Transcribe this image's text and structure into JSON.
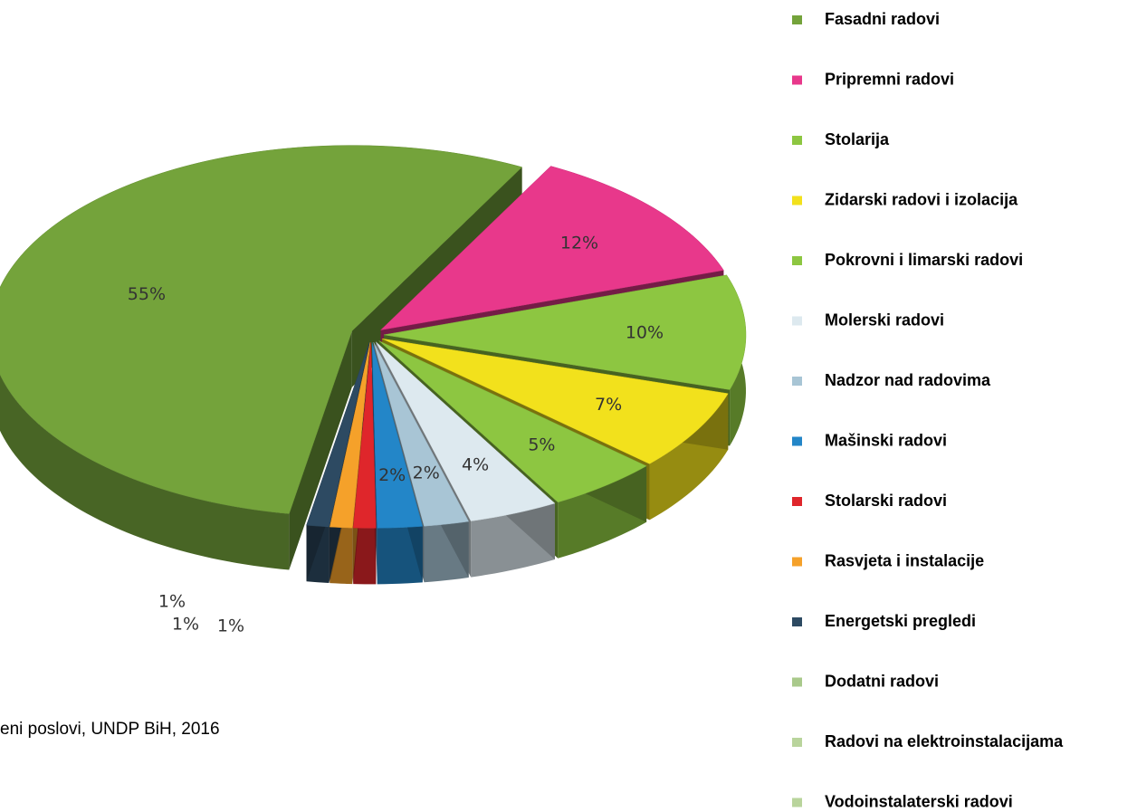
{
  "chart_data": {
    "type": "pie",
    "categories": [
      "Fasadni radovi",
      "Pripremni radovi",
      "Stolarija",
      "Zidarski radovi i izolacija",
      "Pokrovni i limarski radovi",
      "Molerski radovi",
      "Nadzor nad radovima",
      "Mašinski radovi",
      "Stolarski radovi",
      "Rasvjeta i instalacije",
      "Energetski pregledi",
      "Dodatni radovi",
      "Radovi na elektroinstalacijama",
      "Vodoinstalaterski radovi"
    ],
    "values": [
      55,
      12,
      10,
      7,
      5,
      4,
      2,
      2,
      1,
      1,
      1,
      null,
      null,
      null
    ],
    "value_labels": [
      "55%",
      "12%",
      "10%",
      "7%",
      "5%",
      "4%",
      "2%",
      "2%",
      "1%",
      "1%",
      "1%",
      null,
      null,
      null
    ],
    "colors": [
      "#74a33b",
      "#e8388b",
      "#8dc641",
      "#f2e11c",
      "#8dc641",
      "#dde9ef",
      "#a8c5d5",
      "#2386c8",
      "#df262b",
      "#f5a12a",
      "#2d4a62",
      "#a9c98b",
      "#b9d49c",
      "#b9d49c"
    ],
    "legend": "right",
    "source": "eni poslovi, UNDP BiH, 2016"
  }
}
